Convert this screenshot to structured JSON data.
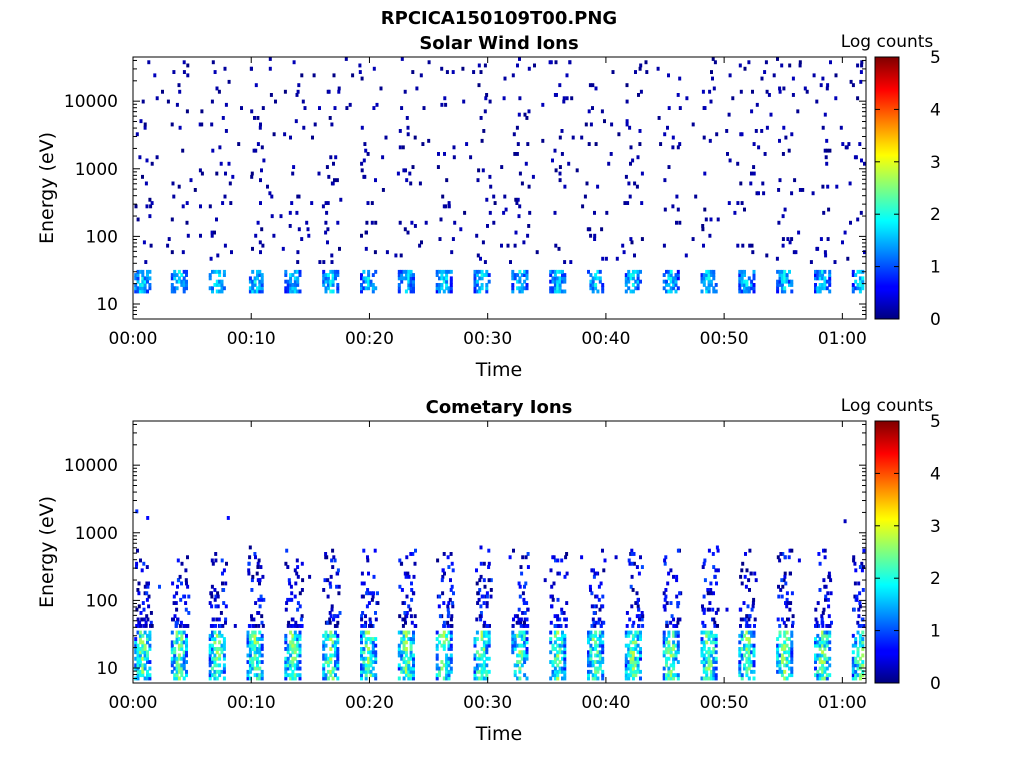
{
  "figure_title": "RPCICA150109T00.PNG",
  "chart_data": [
    {
      "type": "heatmap",
      "title": "Solar Wind Ions",
      "xlabel": "Time",
      "ylabel": "Energy (eV)",
      "xlim": [
        "00:00",
        "01:02"
      ],
      "x_ticks": [
        "00:00",
        "00:10",
        "00:20",
        "00:30",
        "00:40",
        "00:50",
        "01:00"
      ],
      "ylim": [
        6,
        45000
      ],
      "y_scale": "log",
      "y_ticks": [
        "10",
        "100",
        "1000",
        "10000"
      ],
      "colorbar": {
        "label": "Log counts",
        "range": [
          0,
          5
        ],
        "ticks": [
          "0",
          "1",
          "2",
          "3",
          "4",
          "5"
        ],
        "colormap": "jet"
      },
      "series": [
        {
          "description": "periodic low-energy bursts",
          "period_minutes": 3.2,
          "bursts": [
            0.1,
            3.2,
            6.4,
            9.6,
            12.8,
            16.0,
            19.2,
            22.4,
            25.6,
            28.8,
            32.0,
            35.2,
            38.4,
            41.6,
            44.8,
            48.0,
            51.2,
            54.4,
            57.6,
            60.8
          ],
          "energy_range_eV": [
            14,
            32
          ],
          "typical_log_counts": [
            0.5,
            2.0
          ]
        },
        {
          "description": "sparse background counts",
          "energy_range_eV": [
            40,
            40000
          ],
          "typical_log_counts": [
            0,
            0.3
          ]
        }
      ]
    },
    {
      "type": "heatmap",
      "title": "Cometary Ions",
      "xlabel": "Time",
      "ylabel": "Energy (eV)",
      "xlim": [
        "00:00",
        "01:02"
      ],
      "x_ticks": [
        "00:00",
        "00:10",
        "00:20",
        "00:30",
        "00:40",
        "00:50",
        "01:00"
      ],
      "ylim": [
        6,
        45000
      ],
      "y_scale": "log",
      "y_ticks": [
        "10",
        "100",
        "1000",
        "10000"
      ],
      "colorbar": {
        "label": "Log counts",
        "range": [
          0,
          5
        ],
        "ticks": [
          "0",
          "1",
          "2",
          "3",
          "4",
          "5"
        ],
        "colormap": "jet"
      },
      "series": [
        {
          "description": "periodic low-energy bursts",
          "period_minutes": 3.2,
          "bursts": [
            0.1,
            3.2,
            6.4,
            9.6,
            12.8,
            16.0,
            19.2,
            22.4,
            25.6,
            28.8,
            32.0,
            35.2,
            38.4,
            41.6,
            44.8,
            48.0,
            51.2,
            54.4,
            57.6,
            60.8
          ],
          "energy_range_eV": [
            7,
            35
          ],
          "typical_log_counts": [
            0.5,
            2.8
          ]
        },
        {
          "description": "extended counts up to ~600 eV",
          "energy_range_eV": [
            40,
            600
          ],
          "typical_log_counts": [
            0,
            1.0
          ]
        }
      ]
    }
  ]
}
